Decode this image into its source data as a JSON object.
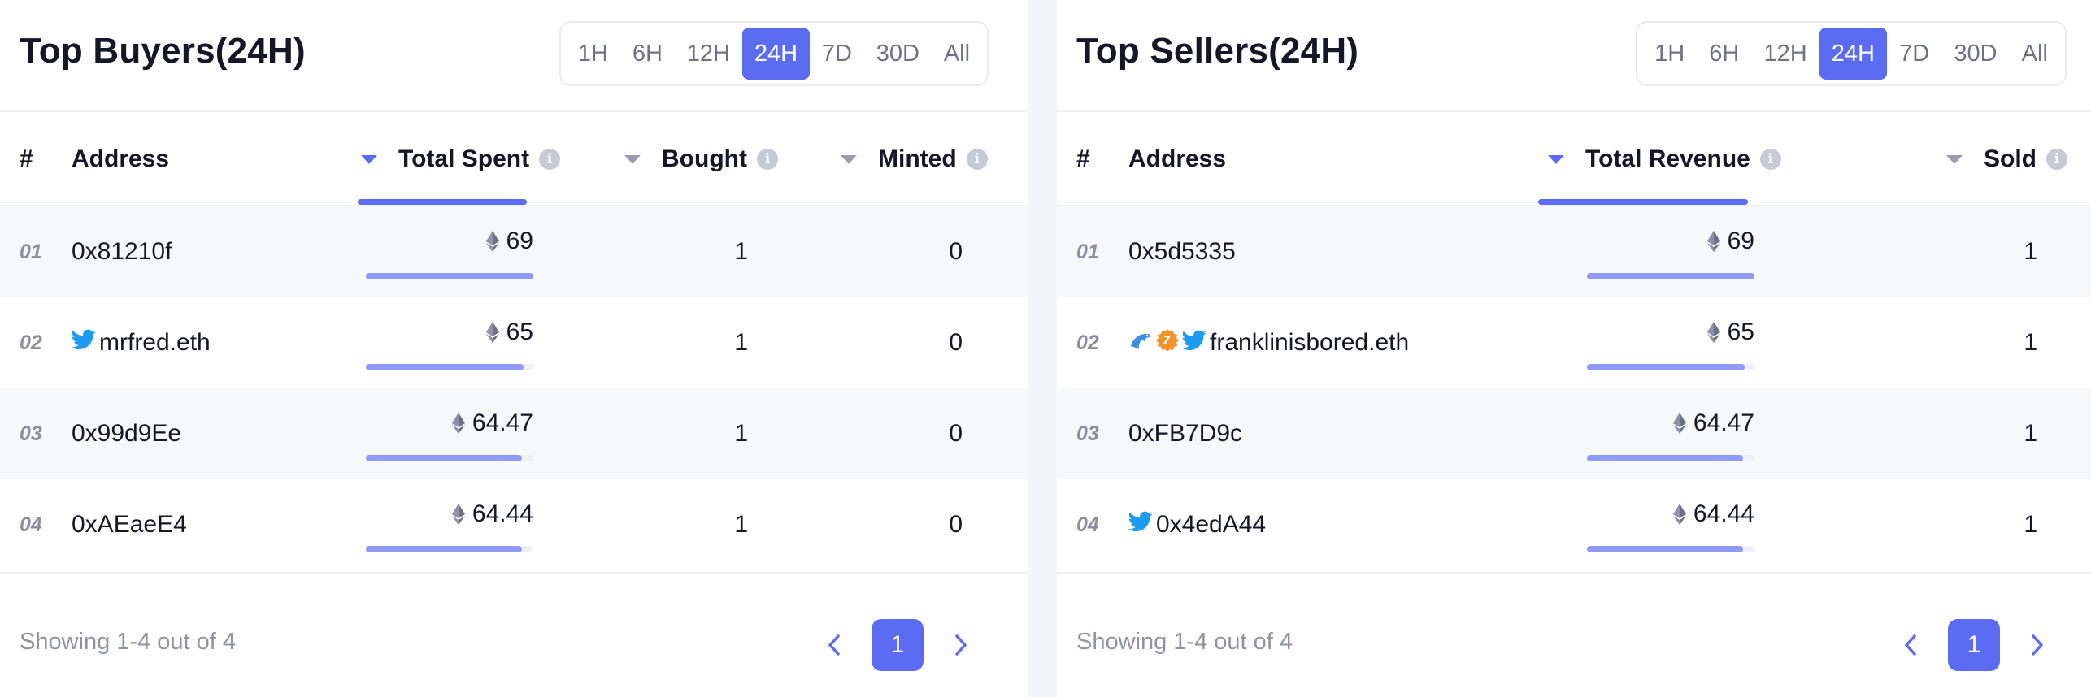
{
  "time_filters": [
    "1H",
    "6H",
    "12H",
    "24H",
    "7D",
    "30D",
    "All"
  ],
  "active_filter": "24H",
  "colors": {
    "accent": "#5b6cf2",
    "bar": "#8e9af5",
    "twitter": "#1d9bf0"
  },
  "buyers": {
    "title": "Top Buyers(24H)",
    "columns": {
      "rank": "#",
      "address": "Address",
      "total": "Total Spent",
      "bought": "Bought",
      "minted": "Minted"
    },
    "rows": [
      {
        "rank": "01",
        "address": "0x81210f",
        "icons": [],
        "value": "69",
        "bar": 1.0,
        "bought": "1",
        "minted": "0"
      },
      {
        "rank": "02",
        "address": "mrfred.eth",
        "icons": [
          "twitter-icon"
        ],
        "value": "65",
        "bar": 0.94,
        "bought": "1",
        "minted": "0"
      },
      {
        "rank": "03",
        "address": "0x99d9Ee",
        "icons": [],
        "value": "64.47",
        "bar": 0.93,
        "bought": "1",
        "minted": "0"
      },
      {
        "rank": "04",
        "address": "0xAEaeE4",
        "icons": [],
        "value": "64.44",
        "bar": 0.93,
        "bought": "1",
        "minted": "0"
      }
    ],
    "showing": "Showing 1-4 out of 4",
    "page": "1"
  },
  "sellers": {
    "title": "Top Sellers(24H)",
    "columns": {
      "rank": "#",
      "address": "Address",
      "total": "Total Revenue",
      "sold": "Sold"
    },
    "rows": [
      {
        "rank": "01",
        "address": "0x5d5335",
        "icons": [],
        "value": "69",
        "bar": 1.0,
        "sold": "1"
      },
      {
        "rank": "02",
        "address": "franklinisbored.eth",
        "icons": [
          "opensea-dolphin-icon",
          "verified-badge-icon",
          "twitter-icon"
        ],
        "value": "65",
        "bar": 0.94,
        "sold": "1"
      },
      {
        "rank": "03",
        "address": "0xFB7D9c",
        "icons": [],
        "value": "64.47",
        "bar": 0.93,
        "sold": "1"
      },
      {
        "rank": "04",
        "address": "0x4edA44",
        "icons": [
          "twitter-icon"
        ],
        "value": "64.44",
        "bar": 0.93,
        "sold": "1"
      }
    ],
    "showing": "Showing 1-4 out of 4",
    "page": "1"
  }
}
